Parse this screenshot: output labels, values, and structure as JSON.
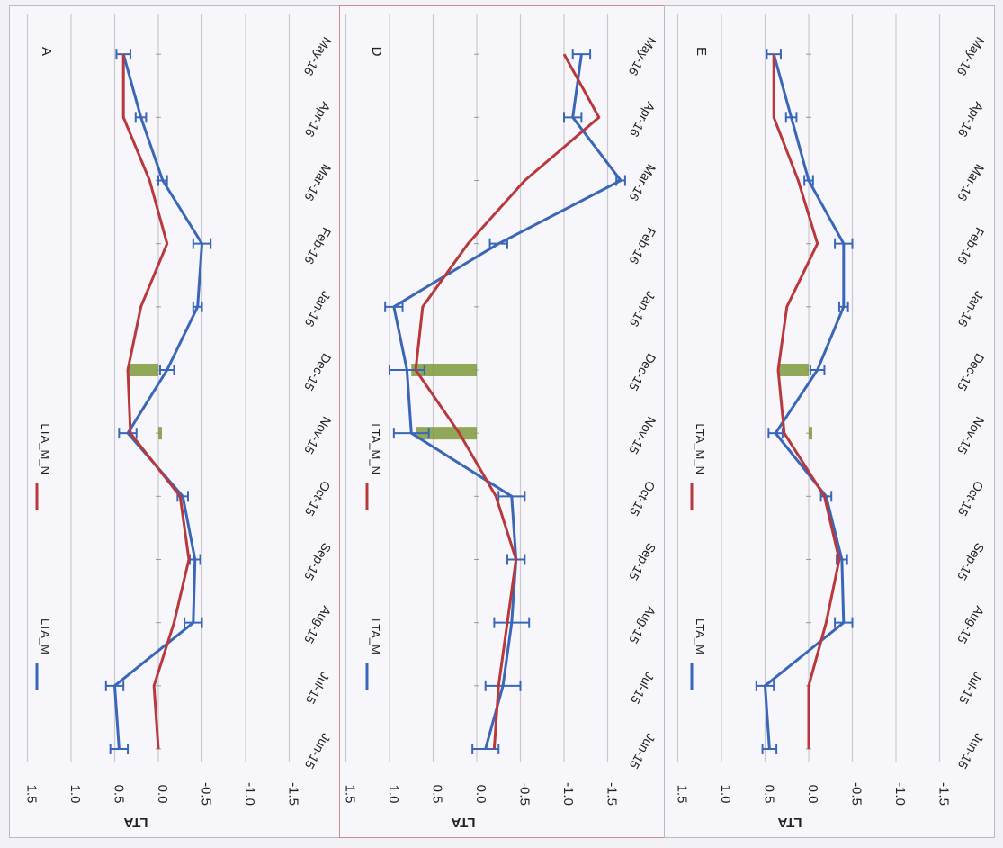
{
  "colors": {
    "lta_m": "#3a66b8",
    "lta_m_n": "#b8383c",
    "highlight": "#7e9a3a"
  },
  "chart_data": [
    {
      "type": "line",
      "panel_label": "A",
      "ylabel": "LTA",
      "ylim": [
        -1.5,
        1.5
      ],
      "yticks": [
        "1.5",
        "1.0",
        "0.5",
        "0.0",
        "-0.5",
        "-1.0",
        "-1.5"
      ],
      "categories": [
        "Jun-15",
        "Jul-15",
        "Aug-15",
        "Sep-15",
        "Oct-15",
        "Nov-15",
        "Dec-15",
        "Jan-16",
        "Feb-16",
        "Mar-16",
        "Apr-16",
        "May-16"
      ],
      "series": [
        {
          "name": "LTA_M",
          "values": [
            0.45,
            0.5,
            -0.4,
            -0.42,
            -0.28,
            0.35,
            -0.1,
            -0.45,
            -0.5,
            -0.05,
            0.2,
            0.4
          ],
          "errors": [
            0.1,
            0.1,
            0.1,
            0.06,
            0.06,
            0.1,
            0.08,
            0.05,
            0.1,
            0.05,
            0.06,
            0.08
          ]
        },
        {
          "name": "LTA_M_N",
          "values": [
            0.0,
            0.05,
            -0.18,
            -0.35,
            -0.25,
            0.32,
            0.35,
            0.2,
            -0.1,
            0.1,
            0.4,
            0.4
          ]
        }
      ],
      "highlight_bars": [
        {
          "category": "Nov-15",
          "value": 0.0
        },
        {
          "category": "Dec-15",
          "value": 0.35
        }
      ],
      "legend": [
        "LTA_M",
        "LTA_M_N"
      ]
    },
    {
      "type": "line",
      "panel_label": "D",
      "ylabel": "LTA",
      "ylim": [
        -1.5,
        1.5
      ],
      "yticks": [
        "1.5",
        "1.0",
        "0.5",
        "0.0",
        "-0.5",
        "-1.0",
        "-1.5"
      ],
      "categories": [
        "Jun-15",
        "Jul-15",
        "Aug-15",
        "Sep-15",
        "Oct-15",
        "Nov-15",
        "Dec-15",
        "Jan-16",
        "Feb-16",
        "Mar-16",
        "Apr-16",
        "May-16"
      ],
      "series": [
        {
          "name": "LTA_M",
          "values": [
            -0.1,
            -0.3,
            -0.4,
            -0.45,
            -0.4,
            0.75,
            0.8,
            0.95,
            -0.25,
            -1.65,
            -1.1,
            -1.2
          ],
          "errors": [
            0.15,
            0.2,
            0.2,
            0.1,
            0.15,
            0.2,
            0.2,
            0.1,
            0.1,
            0.05,
            0.1,
            0.1
          ]
        },
        {
          "name": "LTA_M_N",
          "values": [
            -0.2,
            -0.25,
            -0.35,
            -0.45,
            -0.22,
            0.2,
            0.7,
            0.62,
            0.1,
            -0.55,
            -1.4,
            -1.0
          ]
        }
      ],
      "highlight_bars": [
        {
          "category": "Nov-15",
          "value": 0.7
        },
        {
          "category": "Dec-15",
          "value": 0.75
        }
      ],
      "legend": [
        "LTA_M",
        "LTA_M_N"
      ]
    },
    {
      "type": "line",
      "panel_label": "E",
      "ylabel": "LTA",
      "ylim": [
        -1.5,
        1.5
      ],
      "yticks": [
        "1.5",
        "1.0",
        "0.5",
        "0.0",
        "-0.5",
        "-1.0",
        "-1.5"
      ],
      "categories": [
        "Jun-15",
        "Jul-15",
        "Aug-15",
        "Sep-15",
        "Oct-15",
        "Nov-15",
        "Dec-15",
        "Jan-16",
        "Feb-16",
        "Mar-16",
        "Apr-16",
        "May-16"
      ],
      "series": [
        {
          "name": "LTA_M",
          "values": [
            0.45,
            0.5,
            -0.4,
            -0.38,
            -0.2,
            0.38,
            -0.1,
            -0.4,
            -0.4,
            0.0,
            0.2,
            0.4
          ],
          "errors": [
            0.08,
            0.1,
            0.1,
            0.06,
            0.06,
            0.08,
            0.08,
            0.05,
            0.1,
            0.05,
            0.06,
            0.08
          ]
        },
        {
          "name": "LTA_M_N",
          "values": [
            0.0,
            0.0,
            -0.2,
            -0.35,
            -0.18,
            0.28,
            0.35,
            0.25,
            -0.1,
            0.12,
            0.4,
            0.4
          ]
        }
      ],
      "highlight_bars": [
        {
          "category": "Nov-15",
          "value": 0.0
        },
        {
          "category": "Dec-15",
          "value": 0.35
        }
      ],
      "legend": [
        "LTA_M",
        "LTA_M_N"
      ]
    }
  ]
}
